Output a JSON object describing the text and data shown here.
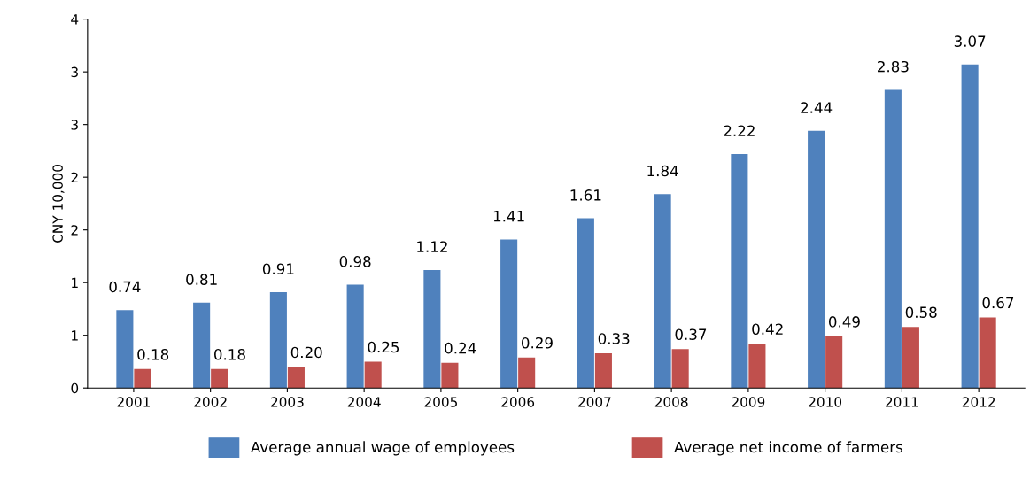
{
  "chart_data": {
    "type": "bar",
    "ylabel": "CNY 10,000",
    "categories": [
      "2001",
      "2002",
      "2003",
      "2004",
      "2005",
      "2006",
      "2007",
      "2008",
      "2009",
      "2010",
      "2011",
      "2012"
    ],
    "series": [
      {
        "name": "Average annual wage of employees",
        "color": "#4f81bd",
        "values": [
          0.74,
          0.81,
          0.91,
          0.98,
          1.12,
          1.41,
          1.61,
          1.84,
          2.22,
          2.44,
          2.83,
          3.07
        ]
      },
      {
        "name": "Average net income of farmers",
        "color": "#c0504d",
        "values": [
          0.18,
          0.18,
          0.2,
          0.25,
          0.24,
          0.29,
          0.33,
          0.37,
          0.42,
          0.49,
          0.58,
          0.67
        ],
        "value_labels": [
          "0.18",
          "0.18",
          "0.20",
          "0.25",
          "0.24",
          "0.29",
          "0.33",
          "0.37",
          "0.42",
          "0.49",
          "0.58",
          "0.67"
        ]
      }
    ],
    "ylim": [
      0,
      3.5
    ],
    "yticks": [
      0,
      {
        "value": 0.5,
        "label": "1"
      },
      {
        "value": 1,
        "label": "1"
      },
      {
        "value": 1.5,
        "label": "2"
      },
      {
        "value": 2,
        "label": "2"
      },
      {
        "value": 2.5,
        "label": "3"
      },
      {
        "value": 3,
        "label": "3"
      },
      {
        "value": 3.5,
        "label": "4"
      }
    ],
    "data_labels": true,
    "grid": false,
    "legend": "bottom"
  }
}
